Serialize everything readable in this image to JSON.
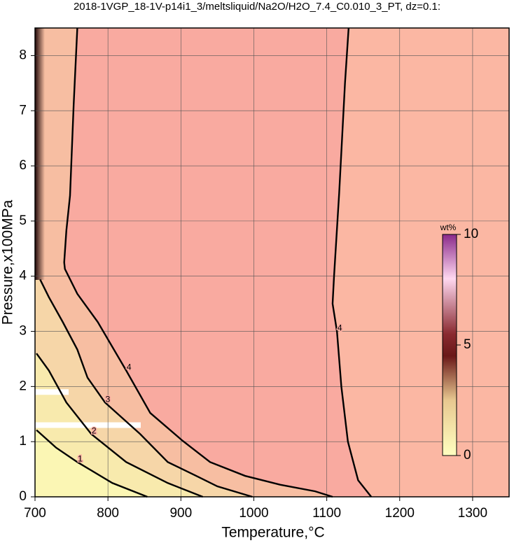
{
  "chart_data": {
    "type": "contour",
    "title": "2018-1VGP_18-1V-p14i1_3/meltsliquid/Na2O/H2O_7.4_C0.010_3_PT, dz=0.1:",
    "x_label": "Temperature,°C",
    "y_label": "Pressure,x100MPa",
    "xlim": [
      700,
      1350
    ],
    "ylim": [
      0,
      8.5
    ],
    "xticks": [
      700,
      800,
      900,
      1000,
      1100,
      1200,
      1300
    ],
    "yticks": [
      0,
      1,
      2,
      3,
      4,
      5,
      6,
      7,
      8
    ],
    "grid": true,
    "contours": [
      {
        "level": 4,
        "x": [
          1130,
          1125,
          1117,
          1110,
          1108,
          1114,
          1120,
          1129,
          1143,
          1161
        ],
        "y": [
          8.5,
          7.5,
          5.5,
          4.0,
          3.5,
          3.0,
          2.0,
          1.0,
          0.3,
          0
        ]
      },
      {
        "level": 4,
        "x": [
          758,
          753,
          748,
          743,
          740,
          741,
          758,
          786,
          825,
          858,
          902,
          940,
          988,
          1036,
          1084,
          1108
        ],
        "y": [
          8.5,
          7.11,
          5.46,
          4.83,
          4.25,
          4.13,
          3.68,
          3.17,
          2.29,
          1.52,
          1.02,
          0.63,
          0.38,
          0.22,
          0.1,
          0
        ]
      },
      {
        "level": 3,
        "x": [
          707,
          719,
          738,
          758,
          772,
          796,
          844,
          882,
          921,
          950,
          998
        ],
        "y": [
          3.94,
          3.62,
          3.17,
          2.67,
          2.16,
          1.71,
          1.14,
          0.63,
          0.38,
          0.19,
          0
        ]
      },
      {
        "level": 2,
        "x": [
          702,
          719,
          743,
          777,
          825,
          882,
          930
        ],
        "y": [
          2.6,
          2.29,
          1.71,
          1.14,
          0.63,
          0.25,
          0
        ]
      },
      {
        "level": 1,
        "x": [
          702,
          729,
          758,
          806,
          854
        ],
        "y": [
          1.21,
          0.89,
          0.63,
          0.25,
          0
        ]
      }
    ],
    "colorbar": {
      "label": "wt%",
      "lim": [
        0,
        10
      ],
      "ticks": [
        0,
        5,
        10
      ]
    }
  }
}
